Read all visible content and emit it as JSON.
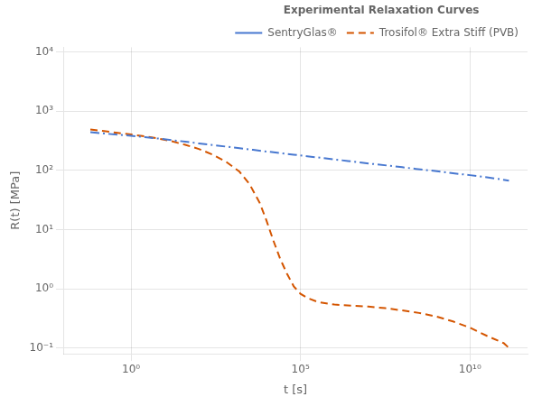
{
  "chart_data": {
    "type": "line",
    "title": "Experimental Relaxation Curves",
    "x_label": "t [s]",
    "y_label": "R(t) [MPa]",
    "log": true,
    "grid": true,
    "legend": "upper right",
    "xlim": [
      0.01,
      500000000000.0
    ],
    "ylim": [
      0.08,
      12000
    ],
    "xticks": [
      {
        "value": 1,
        "label": "10⁰"
      },
      {
        "value": 100000,
        "label": "10⁵"
      },
      {
        "value": 10000000000,
        "label": "10¹⁰"
      }
    ],
    "yticks": [
      {
        "value": 0.1,
        "label": "10⁻¹"
      },
      {
        "value": 1,
        "label": "10⁰"
      },
      {
        "value": 10,
        "label": "10¹"
      },
      {
        "value": 100,
        "label": "10²"
      },
      {
        "value": 1000,
        "label": "10³"
      },
      {
        "value": 10000,
        "label": "10⁴"
      }
    ],
    "series": [
      {
        "name": "SentryGlas®",
        "color": "#4878d0",
        "line_style": "dash-dot",
        "marker": "none",
        "x": [
          0.06309573444801933,
          0.15848931924611134,
          0.3981071705534972,
          1,
          2.51188643150958,
          6.309573444801933,
          15.848931924611135,
          39.810717055349734,
          100,
          251.18864315095797,
          630.9573444801937,
          1584.8931924611134,
          3981.0717055349733,
          10000,
          25118.864315095823,
          63095.73444801943,
          158489.3192461114,
          398107.1705534977,
          1000000,
          2511886.4315095823,
          6309573.444801943,
          15848931.924611142,
          39810717.05534978,
          100000000,
          251188643.1509582,
          630957344.4801943,
          1584893192.4611142,
          3981071705.534978,
          10000000000,
          25118864315.09582,
          63095734448.01943,
          141253754462.27542
        ],
        "values": [
          440,
          420,
          400,
          385,
          365,
          345,
          325,
          305,
          285,
          268,
          252,
          236,
          222,
          208,
          196,
          184,
          173,
          163,
          153,
          144,
          135,
          127,
          120,
          113,
          106,
          100,
          94,
          88,
          83,
          78,
          72,
          67
        ]
      },
      {
        "name": "Trosifol® Extra Stiff (PVB)",
        "color": "#d45500",
        "line_style": "dashed",
        "marker": "none",
        "x": [
          0.06309573444801933,
          0.15848931924611134,
          0.3981071705534972,
          1,
          2.51188643150958,
          6.309573444801933,
          15.848931924611135,
          39.810717055349734,
          100,
          251.18864315095797,
          630.9573444801937,
          1584.8931924611134,
          3162.2776601683795,
          6309.573444801943,
          10000,
          15848.93192461114,
          25118.864315095823,
          39810.71705534973,
          63095.73444801943,
          100000,
          158489.3192461114,
          316227.7660168379,
          1000000,
          3162277.6601683795,
          10000000,
          31622776.601683795,
          100000000,
          316227766.01683795,
          1000000000,
          3162277660.1683793,
          10000000000,
          31622776601.683792,
          100000000000,
          141253754462.27542
        ],
        "values": [
          490,
          460,
          430,
          405,
          375,
          345,
          310,
          270,
          230,
          185,
          140,
          95,
          58,
          28,
          14,
          6.5,
          3.2,
          1.8,
          1.1,
          0.82,
          0.7,
          0.6,
          0.54,
          0.52,
          0.5,
          0.47,
          0.43,
          0.39,
          0.34,
          0.28,
          0.22,
          0.16,
          0.12,
          0.1
        ]
      }
    ]
  }
}
